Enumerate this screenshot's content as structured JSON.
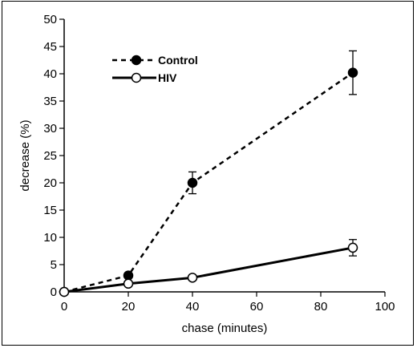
{
  "chart_data": {
    "type": "line",
    "title": "",
    "xlabel": "chase (minutes)",
    "ylabel": "decrease (%)",
    "xlim": [
      0,
      100
    ],
    "ylim": [
      0,
      50
    ],
    "xticks": [
      0,
      20,
      40,
      60,
      80,
      100
    ],
    "yticks": [
      0,
      5,
      10,
      15,
      20,
      25,
      30,
      35,
      40,
      45,
      50
    ],
    "grid": false,
    "legend_position": "top-left",
    "series": [
      {
        "name": "Control",
        "line_style": "dashed",
        "marker": "filled-circle",
        "color": "#000000",
        "x": [
          0,
          20,
          40,
          90
        ],
        "y": [
          0,
          3,
          20,
          40.2
        ],
        "error": [
          0,
          0,
          2,
          4
        ]
      },
      {
        "name": "HIV",
        "line_style": "solid",
        "marker": "open-circle",
        "color": "#000000",
        "x": [
          0,
          20,
          40,
          90
        ],
        "y": [
          0,
          1.5,
          2.6,
          8.1
        ],
        "error": [
          0,
          0,
          0,
          1.5
        ]
      }
    ]
  }
}
